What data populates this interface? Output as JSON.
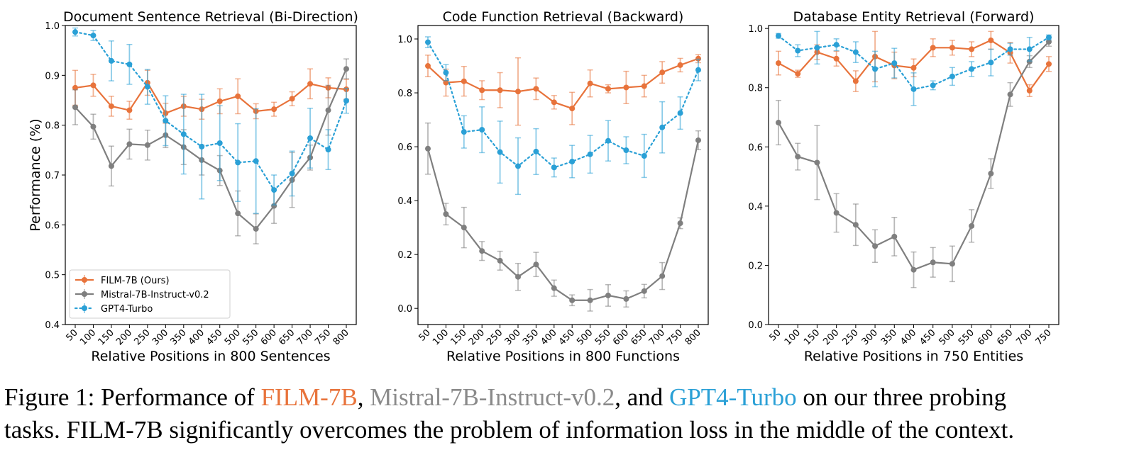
{
  "chart_data": [
    {
      "type": "line",
      "title": "Document Sentence Retrieval (Bi-Direction)",
      "xlabel": "Relative Positions in 800 Sentences",
      "ylabel": "Performance (%)",
      "categories": [
        "50",
        "100",
        "150",
        "200",
        "250",
        "300",
        "350",
        "400",
        "450",
        "500",
        "550",
        "600",
        "650",
        "700",
        "750",
        "800"
      ],
      "ylim": [
        0.4,
        1.0
      ],
      "yticks": [
        "0.4",
        "0.5",
        "0.6",
        "0.7",
        "0.8",
        "0.9",
        "1.0"
      ],
      "legend": "bottom-left",
      "series": [
        {
          "name": "FILM-7B (Ours)",
          "color": "#e8733b",
          "values": [
            0.875,
            0.88,
            0.838,
            0.83,
            0.885,
            0.824,
            0.838,
            0.832,
            0.848,
            0.858,
            0.828,
            0.832,
            0.853,
            0.883,
            0.875,
            0.872
          ],
          "errors": [
            0.035,
            0.022,
            0.02,
            0.018,
            0.025,
            0.02,
            0.02,
            0.02,
            0.025,
            0.035,
            0.015,
            0.014,
            0.014,
            0.03,
            0.02,
            0.02
          ]
        },
        {
          "name": "Mistral-7B-Instruct-v0.2",
          "color": "#7f7f7f",
          "values": [
            0.836,
            0.797,
            0.718,
            0.762,
            0.76,
            0.78,
            0.756,
            0.73,
            0.709,
            0.623,
            0.592,
            0.638,
            0.69,
            0.735,
            0.83,
            0.913
          ],
          "errors": [
            0.035,
            0.025,
            0.04,
            0.03,
            0.03,
            0.025,
            0.035,
            0.03,
            0.03,
            0.045,
            0.03,
            0.035,
            0.055,
            0.025,
            0.05,
            0.02
          ]
        },
        {
          "name": "GPT4-Turbo",
          "color": "#2aa0d6",
          "values": [
            0.987,
            0.98,
            0.929,
            0.922,
            0.877,
            0.809,
            0.782,
            0.757,
            0.764,
            0.725,
            0.728,
            0.67,
            0.703,
            0.774,
            0.751,
            0.849
          ],
          "errors": [
            0.008,
            0.01,
            0.04,
            0.04,
            0.035,
            0.05,
            0.08,
            0.105,
            0.075,
            0.078,
            0.105,
            0.03,
            0.045,
            0.06,
            0.04,
            0.025
          ]
        }
      ]
    },
    {
      "type": "line",
      "title": "Code Function Retrieval (Backward)",
      "xlabel": "Relative Positions in 800 Functions",
      "ylabel": "",
      "categories": [
        "50",
        "100",
        "150",
        "200",
        "250",
        "300",
        "350",
        "400",
        "450",
        "500",
        "550",
        "600",
        "650",
        "700",
        "750",
        "800"
      ],
      "ylim": [
        -0.06,
        1.05
      ],
      "yticks": [
        "0.0",
        "0.2",
        "0.4",
        "0.6",
        "0.8",
        "1.0"
      ],
      "yticks_values": [
        0.0,
        0.2,
        0.4,
        0.6,
        0.8,
        1.0
      ],
      "series": [
        {
          "name": "FILM-7B (Ours)",
          "color": "#e8733b",
          "values": [
            0.9,
            0.838,
            0.843,
            0.81,
            0.81,
            0.805,
            0.815,
            0.765,
            0.742,
            0.835,
            0.815,
            0.82,
            0.825,
            0.876,
            0.903,
            0.927
          ],
          "errors": [
            0.04,
            0.05,
            0.055,
            0.035,
            0.065,
            0.125,
            0.04,
            0.025,
            0.06,
            0.05,
            0.015,
            0.06,
            0.04,
            0.04,
            0.025,
            0.015
          ]
        },
        {
          "name": "Mistral-7B-Instruct-v0.2",
          "color": "#7f7f7f",
          "values": [
            0.593,
            0.35,
            0.3,
            0.213,
            0.177,
            0.117,
            0.163,
            0.075,
            0.03,
            0.03,
            0.048,
            0.035,
            0.064,
            0.12,
            0.316,
            0.624
          ],
          "errors": [
            0.095,
            0.04,
            0.075,
            0.035,
            0.035,
            0.05,
            0.045,
            0.03,
            0.02,
            0.04,
            0.04,
            0.03,
            0.025,
            0.05,
            0.02,
            0.035
          ]
        },
        {
          "name": "GPT4-Turbo",
          "color": "#2aa0d6",
          "values": [
            0.988,
            0.875,
            0.655,
            0.663,
            0.58,
            0.528,
            0.582,
            0.523,
            0.545,
            0.572,
            0.622,
            0.587,
            0.566,
            0.672,
            0.725,
            0.885
          ],
          "errors": [
            0.02,
            0.03,
            0.06,
            0.085,
            0.115,
            0.105,
            0.085,
            0.035,
            0.06,
            0.07,
            0.075,
            0.05,
            0.08,
            0.095,
            0.06,
            0.04
          ]
        }
      ]
    },
    {
      "type": "line",
      "title": "Database Entity Retrieval (Forward)",
      "xlabel": "Relative Positions in 750 Entities",
      "ylabel": "",
      "categories": [
        "50",
        "100",
        "150",
        "200",
        "250",
        "300",
        "350",
        "400",
        "450",
        "500",
        "550",
        "600",
        "650",
        "700",
        "750"
      ],
      "ylim": [
        0.0,
        1.01
      ],
      "yticks": [
        "0.0",
        "0.2",
        "0.4",
        "0.6",
        "0.8",
        "1.0"
      ],
      "yticks_values": [
        0.0,
        0.2,
        0.4,
        0.6,
        0.8,
        1.0
      ],
      "series": [
        {
          "name": "FILM-7B (Ours)",
          "color": "#e8733b",
          "values": [
            0.883,
            0.847,
            0.92,
            0.898,
            0.822,
            0.905,
            0.875,
            0.867,
            0.935,
            0.935,
            0.93,
            0.96,
            0.918,
            0.79,
            0.88
          ],
          "errors": [
            0.04,
            0.012,
            0.025,
            0.025,
            0.035,
            0.085,
            0.045,
            0.03,
            0.03,
            0.025,
            0.025,
            0.03,
            0.035,
            0.02,
            0.025
          ]
        },
        {
          "name": "Mistral-7B-Instruct-v0.2",
          "color": "#7f7f7f",
          "values": [
            0.682,
            0.567,
            0.547,
            0.377,
            0.337,
            0.265,
            0.297,
            0.185,
            0.21,
            0.205,
            0.333,
            0.51,
            0.777,
            0.888,
            0.955
          ],
          "errors": [
            0.075,
            0.045,
            0.125,
            0.065,
            0.07,
            0.055,
            0.065,
            0.06,
            0.05,
            0.06,
            0.055,
            0.05,
            0.04,
            0.02,
            0.015
          ]
        },
        {
          "name": "GPT4-Turbo",
          "color": "#2aa0d6",
          "values": [
            0.975,
            0.925,
            0.935,
            0.945,
            0.92,
            0.863,
            0.883,
            0.795,
            0.808,
            0.838,
            0.863,
            0.885,
            0.93,
            0.93,
            0.97
          ],
          "errors": [
            0.008,
            0.02,
            0.055,
            0.02,
            0.035,
            0.06,
            0.05,
            0.055,
            0.015,
            0.03,
            0.025,
            0.045,
            0.02,
            0.04,
            0.008
          ]
        }
      ]
    }
  ],
  "caption": {
    "prefix": "Figure 1: Performance of ",
    "film": "FILM-7B",
    "sep1": ", ",
    "mistral": "Mistral-7B-Instruct-v0.2",
    "sep2": ", and ",
    "gpt": "GPT4-Turbo",
    "suffix": " on our three probing",
    "line2_prefix": "tasks. ",
    "line2_film": "FILM-7B",
    "line2_rest": " significantly overcomes the problem of information loss in the middle of the context."
  }
}
